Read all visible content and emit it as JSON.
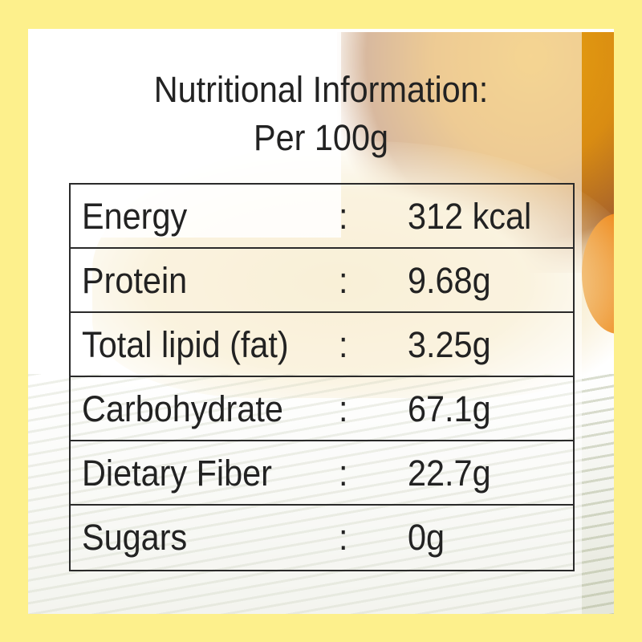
{
  "title": {
    "line1": "Nutritional Information:",
    "line2": "Per 100g"
  },
  "separator": ":",
  "rows": [
    {
      "label": "Energy",
      "value": "312 kcal"
    },
    {
      "label": "Protein",
      "value": "9.68g"
    },
    {
      "label": "Total lipid (fat)",
      "value": "3.25g"
    },
    {
      "label": "Carbohydrate",
      "value": "67.1g"
    },
    {
      "label": "Dietary Fiber",
      "value": "22.7g"
    },
    {
      "label": "Sugars",
      "value": "0g"
    }
  ],
  "colors": {
    "border": "#fdf08c",
    "text": "#222222"
  }
}
